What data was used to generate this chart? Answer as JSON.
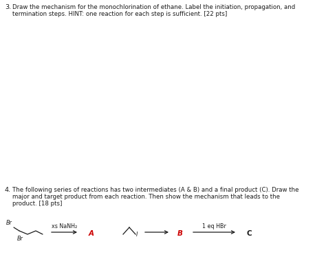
{
  "q3_number": "3.",
  "q3_text_line1": "Draw the mechanism for the monochlorination of ethane. Label the initiation, propagation, and",
  "q3_text_line2": "termination steps. HINT: one reaction for each step is sufficient. [22 pts]",
  "q4_number": "4.",
  "q4_text_line1": "The following series of reactions has two intermediates (A & B) and a final product (C). Draw the",
  "q4_text_line2": "major and target product from each reaction. Then show the mechanism that leads to the",
  "q4_text_line3": "product. [18 pts]",
  "label_A": "A",
  "label_B": "B",
  "label_C": "C",
  "reagent1": "xs NaNH₂",
  "reagent2": "1 eq HBr",
  "bg_color": "#ffffff",
  "text_color": "#1a1a1a",
  "label_color_AB": "#cc0000",
  "label_color_C": "#1a1a1a",
  "font_size_body": 6.2,
  "font_size_number": 6.8,
  "font_size_label": 7.5,
  "font_size_mol": 5.8
}
